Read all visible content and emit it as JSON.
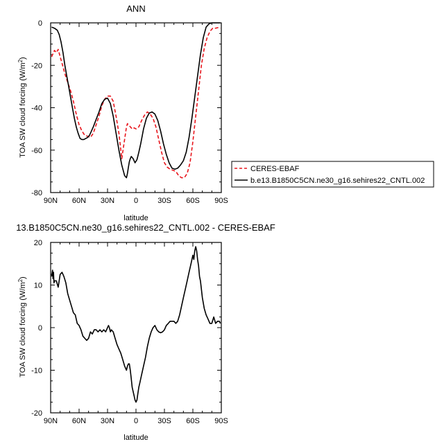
{
  "chart_data": [
    {
      "type": "line",
      "title": "ANN",
      "xlabel": "latitude",
      "ylabel": "TOA SW cloud forcing (W/m²)",
      "ylabel_base": "TOA SW cloud forcing (W/m",
      "ylabel_sup": "2",
      "ylabel_end": ")",
      "xlim": [
        90,
        -90
      ],
      "ylim": [
        -80,
        0
      ],
      "x_ticks": [
        90,
        60,
        30,
        0,
        -30,
        -60,
        -90
      ],
      "x_tick_labels": [
        "90N",
        "60N",
        "30N",
        "0",
        "30S",
        "60S",
        "90S"
      ],
      "y_ticks": [
        0,
        -20,
        -40,
        -60,
        -80
      ],
      "y_tick_labels": [
        "0",
        "-20",
        "-40",
        "-60",
        "-80"
      ],
      "legend_position": "right",
      "series": [
        {
          "name": "CERES-EBAF",
          "color": "#e8141b",
          "style": "dashed",
          "x": [
            89,
            86,
            84,
            82,
            80,
            78,
            75,
            72,
            69,
            66,
            63,
            60,
            57,
            54,
            51,
            48,
            45,
            42,
            39,
            36,
            33,
            30,
            27,
            24,
            21,
            18,
            15,
            12,
            10,
            9,
            8,
            7,
            6,
            5,
            4,
            3,
            2,
            0,
            -3,
            -6,
            -9,
            -12,
            -15,
            -18,
            -21,
            -24,
            -27,
            -30,
            -33,
            -36,
            -39,
            -42,
            -45,
            -48,
            -51,
            -54,
            -57,
            -60,
            -63,
            -66,
            -69,
            -72,
            -75,
            -78,
            -81,
            -84,
            -87,
            -89
          ],
          "y": [
            -16,
            -13,
            -14,
            -12.5,
            -16,
            -19,
            -24,
            -28,
            -32,
            -37,
            -43,
            -48,
            -51,
            -53,
            -53.5,
            -54,
            -52,
            -48,
            -44,
            -39,
            -36,
            -34.5,
            -34.5,
            -37,
            -44,
            -52,
            -64,
            -55,
            -49,
            -47.5,
            -48,
            -48.5,
            -49,
            -49.5,
            -50,
            -50,
            -49.5,
            -50,
            -49,
            -46,
            -43.5,
            -42,
            -43,
            -45,
            -49,
            -55,
            -61,
            -66,
            -68,
            -69,
            -69.5,
            -70,
            -72,
            -73,
            -73,
            -71,
            -66,
            -56,
            -44,
            -32,
            -20,
            -12,
            -7,
            -4,
            -2.5,
            -2.5,
            -2.2,
            -2.5
          ]
        },
        {
          "name": "b.e13.B1850C5CN.ne30_g16.sehires22_CNTL.002",
          "color": "#000000",
          "style": "solid",
          "x": [
            89,
            86,
            83,
            81,
            79,
            77,
            75,
            73,
            71,
            69,
            67,
            65,
            63,
            61,
            59,
            57,
            55,
            53,
            51,
            49,
            47,
            45,
            42,
            39,
            36,
            33,
            30,
            27,
            24,
            21,
            18,
            15,
            12,
            10,
            9,
            8,
            7,
            6,
            5,
            3,
            1,
            -1,
            -3,
            -5,
            -8,
            -11,
            -14,
            -17,
            -20,
            -23,
            -26,
            -29,
            -32,
            -35,
            -38,
            -41,
            -44,
            -47,
            -50,
            -53,
            -56,
            -59,
            -62,
            -65,
            -68,
            -71,
            -74,
            -77,
            -80,
            -83,
            -86,
            -89
          ],
          "y": [
            -2,
            -2.5,
            -3.5,
            -5.5,
            -9,
            -14,
            -20,
            -25,
            -30,
            -35,
            -40,
            -45,
            -49,
            -52,
            -54.5,
            -55,
            -55,
            -54.5,
            -54,
            -53,
            -51,
            -49,
            -45.5,
            -42,
            -38,
            -36,
            -35.5,
            -38,
            -44,
            -52,
            -60,
            -67,
            -72,
            -73,
            -71,
            -68,
            -65.5,
            -64,
            -63,
            -64,
            -66,
            -64.5,
            -61,
            -57,
            -50,
            -45,
            -42.5,
            -42,
            -43,
            -46,
            -51,
            -57,
            -62,
            -66,
            -68.5,
            -69,
            -68.5,
            -67,
            -65,
            -61,
            -54,
            -45,
            -35,
            -25,
            -15,
            -7,
            -2,
            -0.5,
            0,
            0,
            0,
            0
          ]
        }
      ]
    },
    {
      "type": "line",
      "title": "13.B1850C5CN.ne30_g16.sehires22_CNTL.002 - CERES-EBAF",
      "xlabel": "latitude",
      "ylabel": "TOA SW cloud forcing (W/m²)",
      "ylabel_base": "TOA SW cloud forcing (W/m",
      "ylabel_sup": "2",
      "ylabel_end": ")",
      "xlim": [
        90,
        -90
      ],
      "ylim": [
        -20,
        20
      ],
      "x_ticks": [
        90,
        60,
        30,
        0,
        -30,
        -60,
        -90
      ],
      "x_tick_labels": [
        "90N",
        "60N",
        "30N",
        "0",
        "30S",
        "60S",
        "90S"
      ],
      "y_ticks": [
        20,
        10,
        0,
        -10,
        -20
      ],
      "y_tick_labels": [
        "20",
        "10",
        "0",
        "-10",
        "-20"
      ],
      "series": [
        {
          "color": "#000000",
          "style": "solid",
          "x": [
            89,
            88,
            87.5,
            87,
            86.5,
            86,
            84,
            82,
            80,
            78,
            76,
            74,
            72,
            70,
            68,
            66,
            64,
            62,
            60,
            58,
            56,
            54,
            52,
            50,
            48,
            46,
            44,
            42,
            40,
            38,
            36,
            34,
            32,
            30,
            29,
            28,
            27,
            26,
            24,
            22,
            20,
            18,
            16,
            14,
            12,
            10,
            9,
            8,
            7,
            6,
            5,
            4,
            3,
            2,
            1,
            0,
            -1,
            -2,
            -3,
            -4,
            -6,
            -8,
            -10,
            -12,
            -14,
            -16,
            -18,
            -20,
            -22,
            -24,
            -26,
            -28,
            -30,
            -32,
            -34,
            -36,
            -38,
            -40,
            -42,
            -44,
            -46,
            -48,
            -50,
            -52,
            -54,
            -56,
            -58,
            -60,
            -61,
            -62,
            -63,
            -64,
            -65,
            -66,
            -67,
            -68,
            -70,
            -72,
            -74,
            -76,
            -78,
            -80,
            -82,
            -84,
            -86,
            -88,
            -89
          ],
          "y": [
            12,
            13.5,
            11.5,
            13,
            10.5,
            11,
            11,
            9.5,
            12.5,
            13,
            12,
            10.5,
            8,
            6.5,
            5,
            3.5,
            3,
            1,
            0.5,
            -0.5,
            -2,
            -2.5,
            -3,
            -2.5,
            -1,
            -1.5,
            -0.5,
            -0.5,
            -1,
            -0.5,
            -1,
            -0.5,
            -1,
            0,
            0.5,
            0,
            -1,
            -0.5,
            -1,
            -2.5,
            -4,
            -5,
            -6,
            -7.5,
            -9,
            -10,
            -9,
            -8.5,
            -8.5,
            -10,
            -12,
            -14,
            -15,
            -16,
            -17,
            -17.5,
            -17,
            -15.5,
            -14,
            -13,
            -11,
            -9,
            -7,
            -4.5,
            -2.5,
            -1,
            0,
            0.5,
            -0.5,
            -1,
            -1.2,
            -1,
            -0.5,
            0.5,
            1,
            1.5,
            1.5,
            1.5,
            1,
            1.5,
            3,
            5,
            7,
            9,
            11,
            13,
            15,
            17,
            16,
            18,
            19,
            18,
            16,
            14.5,
            12,
            11,
            7,
            4.5,
            3,
            2,
            1,
            1,
            2.5,
            1,
            1.5,
            1.5,
            1
          ]
        }
      ]
    }
  ]
}
